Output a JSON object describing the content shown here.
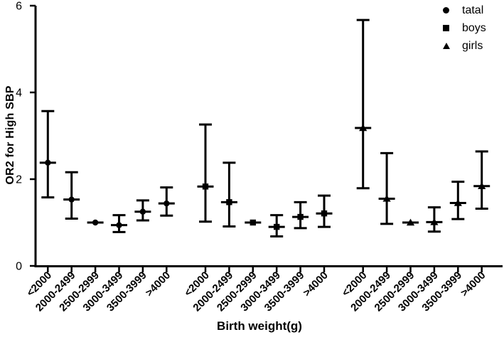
{
  "chart_data": {
    "type": "scatter",
    "subtype": "forest-plot-with-error-bars",
    "title": "",
    "xlabel": "Birth weight(g)",
    "ylabel": "OR2 for High SBP",
    "ylim": [
      0,
      6
    ],
    "yticks": [
      0,
      2,
      4,
      6
    ],
    "grid": false,
    "legend_position": "top-right",
    "ink_color": "#000000",
    "background_color": "#ffffff",
    "categories": [
      "<2000",
      "2000-2499",
      "2500-2999",
      "3000-3499",
      "3500-3999",
      ">4000"
    ],
    "series": [
      {
        "name": "tatal",
        "marker": "circle",
        "points": [
          {
            "category": "<2000",
            "or": 2.38,
            "ci_low": 1.58,
            "ci_high": 3.57
          },
          {
            "category": "2000-2499",
            "or": 1.53,
            "ci_low": 1.09,
            "ci_high": 2.16
          },
          {
            "category": "2500-2999",
            "or": 1.0,
            "ci_low": 1.0,
            "ci_high": 1.0,
            "reference": true
          },
          {
            "category": "3000-3499",
            "or": 0.94,
            "ci_low": 0.78,
            "ci_high": 1.17
          },
          {
            "category": "3500-3999",
            "or": 1.25,
            "ci_low": 1.05,
            "ci_high": 1.51
          },
          {
            "category": ">4000",
            "or": 1.44,
            "ci_low": 1.16,
            "ci_high": 1.81
          }
        ]
      },
      {
        "name": "boys",
        "marker": "square",
        "points": [
          {
            "category": "<2000",
            "or": 1.83,
            "ci_low": 1.02,
            "ci_high": 3.26
          },
          {
            "category": "2000-2499",
            "or": 1.47,
            "ci_low": 0.91,
            "ci_high": 2.38
          },
          {
            "category": "2500-2999",
            "or": 1.0,
            "ci_low": 1.0,
            "ci_high": 1.0,
            "reference": true
          },
          {
            "category": "3000-3499",
            "or": 0.9,
            "ci_low": 0.68,
            "ci_high": 1.17
          },
          {
            "category": "3500-3999",
            "or": 1.13,
            "ci_low": 0.87,
            "ci_high": 1.47
          },
          {
            "category": ">4000",
            "or": 1.21,
            "ci_low": 0.9,
            "ci_high": 1.62
          }
        ]
      },
      {
        "name": "girls",
        "marker": "triangle",
        "points": [
          {
            "category": "<2000",
            "or": 3.18,
            "ci_low": 1.79,
            "ci_high": 5.67
          },
          {
            "category": "2000-2499",
            "or": 1.55,
            "ci_low": 0.97,
            "ci_high": 2.6
          },
          {
            "category": "2500-2999",
            "or": 1.0,
            "ci_low": 1.0,
            "ci_high": 1.0,
            "reference": true
          },
          {
            "category": "3000-3499",
            "or": 1.01,
            "ci_low": 0.79,
            "ci_high": 1.35
          },
          {
            "category": "3500-3999",
            "or": 1.45,
            "ci_low": 1.08,
            "ci_high": 1.94
          },
          {
            "category": ">4000",
            "or": 1.84,
            "ci_low": 1.32,
            "ci_high": 2.64
          }
        ]
      }
    ]
  }
}
